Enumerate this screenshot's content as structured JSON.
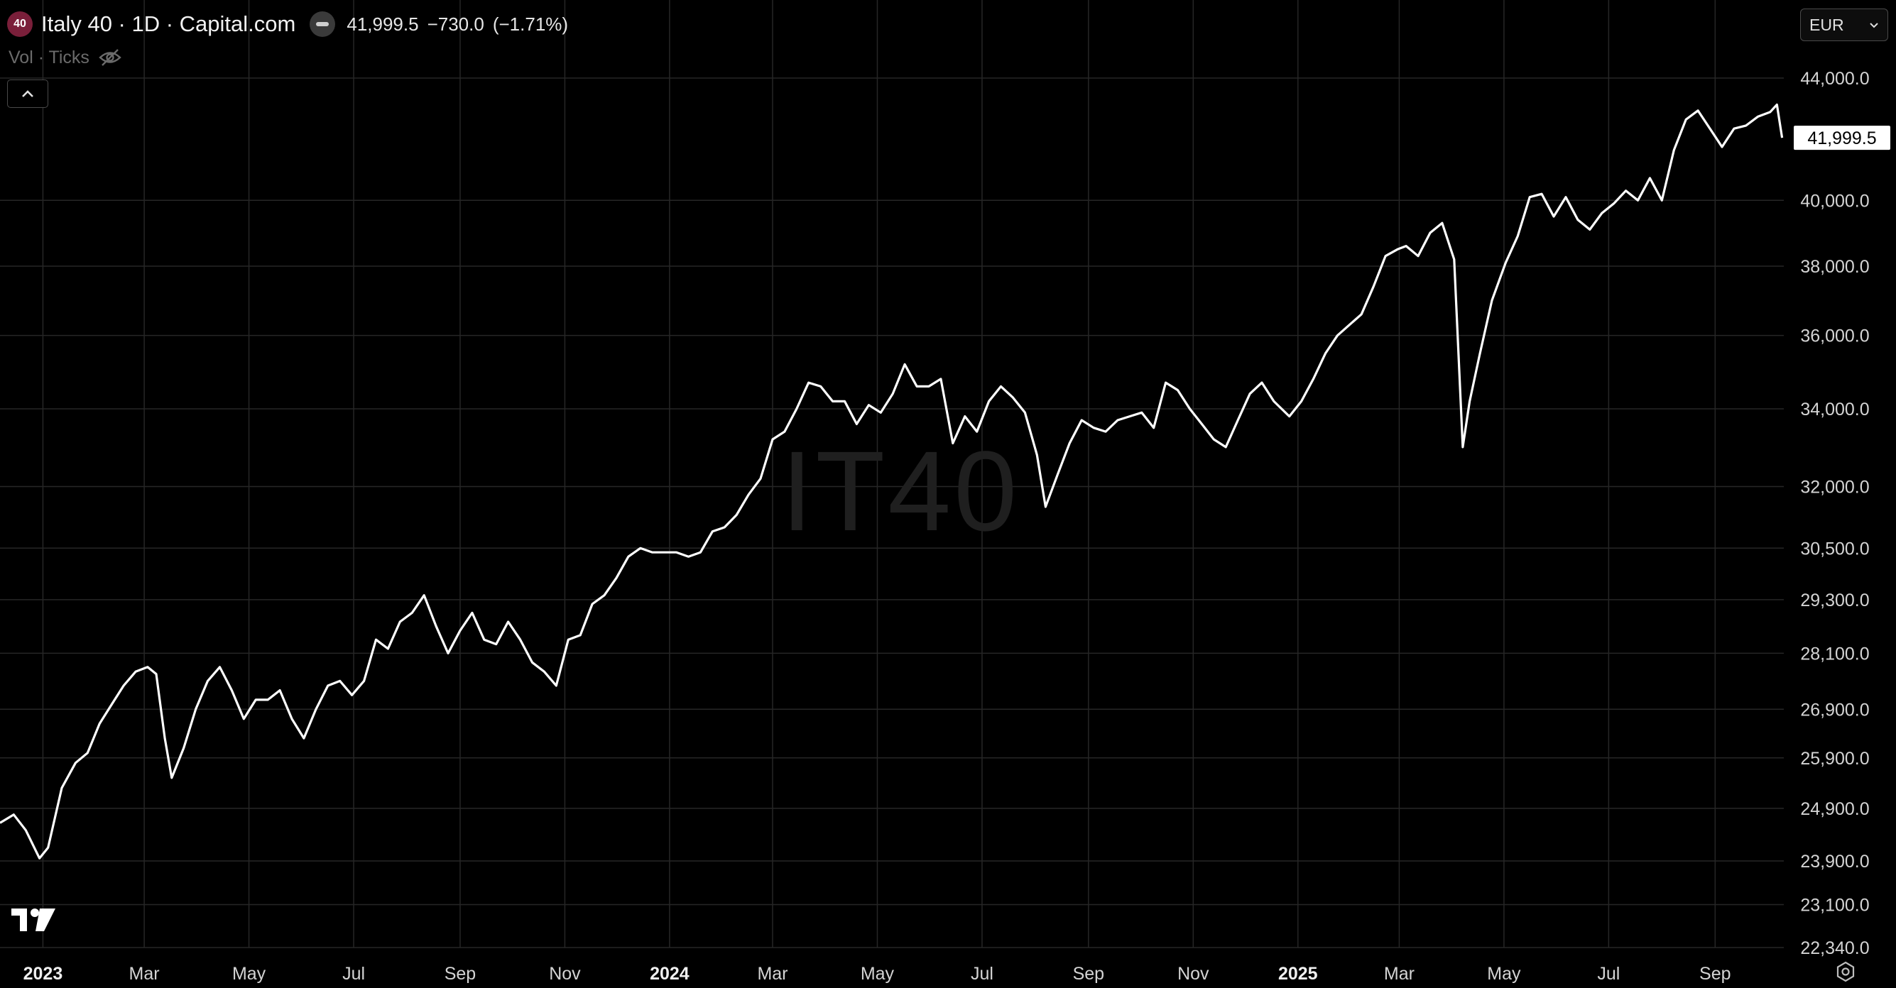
{
  "legend": {
    "badge": "40",
    "title": "Italy 40 · 1D · Capital.com",
    "last": "41,999.5",
    "change": "−730.0",
    "change_pct": "(−1.71%)"
  },
  "indicator": {
    "label": "Vol · Ticks"
  },
  "currency": {
    "value": "EUR"
  },
  "watermark": "IT40",
  "colors": {
    "background": "#000000",
    "line": "#ffffff",
    "grid": "#262626",
    "text": "#d9d9d9"
  },
  "chart_data": {
    "type": "line",
    "title": "Italy 40 · 1D · Capital.com",
    "xlabel": "",
    "ylabel": "",
    "log_scale": true,
    "grid": true,
    "ylim": [
      22340,
      45000
    ],
    "x_range": [
      "2022-12-07",
      "2025-10-11"
    ],
    "x_ticks": [
      {
        "date": "2023-01-01",
        "label": "2023",
        "bold": true
      },
      {
        "date": "2023-03-01",
        "label": "Mar"
      },
      {
        "date": "2023-05-01",
        "label": "May"
      },
      {
        "date": "2023-07-01",
        "label": "Jul"
      },
      {
        "date": "2023-09-01",
        "label": "Sep"
      },
      {
        "date": "2023-11-01",
        "label": "Nov"
      },
      {
        "date": "2024-01-01",
        "label": "2024",
        "bold": true
      },
      {
        "date": "2024-03-01",
        "label": "Mar"
      },
      {
        "date": "2024-05-01",
        "label": "May"
      },
      {
        "date": "2024-07-01",
        "label": "Jul"
      },
      {
        "date": "2024-09-01",
        "label": "Sep"
      },
      {
        "date": "2024-11-01",
        "label": "Nov"
      },
      {
        "date": "2025-01-01",
        "label": "2025",
        "bold": true
      },
      {
        "date": "2025-03-01",
        "label": "Mar"
      },
      {
        "date": "2025-05-01",
        "label": "May"
      },
      {
        "date": "2025-07-01",
        "label": "Jul"
      },
      {
        "date": "2025-09-01",
        "label": "Sep"
      }
    ],
    "y_ticks": [
      {
        "value": 44000,
        "label": "44,000.0"
      },
      {
        "value": 40000,
        "label": "40,000.0"
      },
      {
        "value": 38000,
        "label": "38,000.0"
      },
      {
        "value": 36000,
        "label": "36,000.0"
      },
      {
        "value": 34000,
        "label": "34,000.0"
      },
      {
        "value": 32000,
        "label": "32,000.0"
      },
      {
        "value": 30500,
        "label": "30,500.0"
      },
      {
        "value": 29300,
        "label": "29,300.0"
      },
      {
        "value": 28100,
        "label": "28,100.0"
      },
      {
        "value": 26900,
        "label": "26,900.0"
      },
      {
        "value": 25900,
        "label": "25,900.0"
      },
      {
        "value": 24900,
        "label": "24,900.0"
      },
      {
        "value": 23900,
        "label": "23,900.0"
      },
      {
        "value": 23100,
        "label": "23,100.0"
      },
      {
        "value": 22340,
        "label": "22,340.0"
      }
    ],
    "last_price": {
      "value": 41999.5,
      "label": "41,999.5"
    },
    "series": [
      {
        "points": [
          [
            "2022-12-07",
            24620
          ],
          [
            "2022-12-15",
            24780
          ],
          [
            "2022-12-22",
            24480
          ],
          [
            "2022-12-30",
            23950
          ],
          [
            "2023-01-04",
            24150
          ],
          [
            "2023-01-12",
            25300
          ],
          [
            "2023-01-20",
            25800
          ],
          [
            "2023-01-27",
            26000
          ],
          [
            "2023-02-03",
            26600
          ],
          [
            "2023-02-10",
            27000
          ],
          [
            "2023-02-17",
            27400
          ],
          [
            "2023-02-24",
            27700
          ],
          [
            "2023-03-03",
            27800
          ],
          [
            "2023-03-08",
            27650
          ],
          [
            "2023-03-13",
            26300
          ],
          [
            "2023-03-17",
            25500
          ],
          [
            "2023-03-24",
            26100
          ],
          [
            "2023-03-31",
            26900
          ],
          [
            "2023-04-07",
            27500
          ],
          [
            "2023-04-14",
            27800
          ],
          [
            "2023-04-21",
            27300
          ],
          [
            "2023-04-28",
            26700
          ],
          [
            "2023-05-05",
            27100
          ],
          [
            "2023-05-12",
            27100
          ],
          [
            "2023-05-19",
            27300
          ],
          [
            "2023-05-26",
            26700
          ],
          [
            "2023-06-02",
            26300
          ],
          [
            "2023-06-09",
            26900
          ],
          [
            "2023-06-16",
            27400
          ],
          [
            "2023-06-23",
            27500
          ],
          [
            "2023-06-30",
            27200
          ],
          [
            "2023-07-07",
            27500
          ],
          [
            "2023-07-14",
            28400
          ],
          [
            "2023-07-21",
            28200
          ],
          [
            "2023-07-28",
            28800
          ],
          [
            "2023-08-04",
            29000
          ],
          [
            "2023-08-11",
            29400
          ],
          [
            "2023-08-18",
            28700
          ],
          [
            "2023-08-25",
            28100
          ],
          [
            "2023-09-01",
            28600
          ],
          [
            "2023-09-08",
            29000
          ],
          [
            "2023-09-15",
            28400
          ],
          [
            "2023-09-22",
            28300
          ],
          [
            "2023-09-29",
            28800
          ],
          [
            "2023-10-06",
            28400
          ],
          [
            "2023-10-13",
            27900
          ],
          [
            "2023-10-20",
            27700
          ],
          [
            "2023-10-27",
            27400
          ],
          [
            "2023-11-03",
            28400
          ],
          [
            "2023-11-10",
            28500
          ],
          [
            "2023-11-17",
            29200
          ],
          [
            "2023-11-24",
            29400
          ],
          [
            "2023-12-01",
            29800
          ],
          [
            "2023-12-08",
            30300
          ],
          [
            "2023-12-15",
            30500
          ],
          [
            "2023-12-22",
            30400
          ],
          [
            "2023-12-29",
            30400
          ],
          [
            "2024-01-05",
            30400
          ],
          [
            "2024-01-12",
            30300
          ],
          [
            "2024-01-19",
            30400
          ],
          [
            "2024-01-26",
            30900
          ],
          [
            "2024-02-02",
            31000
          ],
          [
            "2024-02-09",
            31300
          ],
          [
            "2024-02-16",
            31800
          ],
          [
            "2024-02-23",
            32200
          ],
          [
            "2024-03-01",
            33200
          ],
          [
            "2024-03-08",
            33400
          ],
          [
            "2024-03-15",
            34000
          ],
          [
            "2024-03-22",
            34700
          ],
          [
            "2024-03-29",
            34600
          ],
          [
            "2024-04-05",
            34200
          ],
          [
            "2024-04-12",
            34200
          ],
          [
            "2024-04-19",
            33600
          ],
          [
            "2024-04-26",
            34100
          ],
          [
            "2024-05-03",
            33900
          ],
          [
            "2024-05-10",
            34400
          ],
          [
            "2024-05-17",
            35200
          ],
          [
            "2024-05-24",
            34600
          ],
          [
            "2024-05-31",
            34600
          ],
          [
            "2024-06-07",
            34800
          ],
          [
            "2024-06-14",
            33100
          ],
          [
            "2024-06-21",
            33800
          ],
          [
            "2024-06-28",
            33400
          ],
          [
            "2024-07-05",
            34200
          ],
          [
            "2024-07-12",
            34600
          ],
          [
            "2024-07-19",
            34300
          ],
          [
            "2024-07-26",
            33900
          ],
          [
            "2024-08-02",
            32800
          ],
          [
            "2024-08-07",
            31500
          ],
          [
            "2024-08-14",
            32300
          ],
          [
            "2024-08-21",
            33100
          ],
          [
            "2024-08-28",
            33700
          ],
          [
            "2024-09-04",
            33500
          ],
          [
            "2024-09-11",
            33400
          ],
          [
            "2024-09-18",
            33700
          ],
          [
            "2024-09-25",
            33800
          ],
          [
            "2024-10-02",
            33900
          ],
          [
            "2024-10-09",
            33500
          ],
          [
            "2024-10-16",
            34700
          ],
          [
            "2024-10-23",
            34500
          ],
          [
            "2024-10-30",
            34000
          ],
          [
            "2024-11-06",
            33600
          ],
          [
            "2024-11-13",
            33200
          ],
          [
            "2024-11-20",
            33000
          ],
          [
            "2024-11-27",
            33700
          ],
          [
            "2024-12-04",
            34400
          ],
          [
            "2024-12-11",
            34700
          ],
          [
            "2024-12-18",
            34200
          ],
          [
            "2024-12-27",
            33800
          ],
          [
            "2025-01-03",
            34200
          ],
          [
            "2025-01-10",
            34800
          ],
          [
            "2025-01-17",
            35500
          ],
          [
            "2025-01-24",
            36000
          ],
          [
            "2025-01-31",
            36300
          ],
          [
            "2025-02-07",
            36600
          ],
          [
            "2025-02-14",
            37400
          ],
          [
            "2025-02-21",
            38300
          ],
          [
            "2025-02-28",
            38500
          ],
          [
            "2025-03-05",
            38600
          ],
          [
            "2025-03-12",
            38300
          ],
          [
            "2025-03-19",
            39000
          ],
          [
            "2025-03-26",
            39300
          ],
          [
            "2025-04-02",
            38200
          ],
          [
            "2025-04-07",
            33000
          ],
          [
            "2025-04-11",
            34200
          ],
          [
            "2025-04-17",
            35500
          ],
          [
            "2025-04-24",
            37000
          ],
          [
            "2025-05-02",
            38100
          ],
          [
            "2025-05-09",
            38900
          ],
          [
            "2025-05-16",
            40100
          ],
          [
            "2025-05-23",
            40200
          ],
          [
            "2025-05-30",
            39500
          ],
          [
            "2025-06-06",
            40100
          ],
          [
            "2025-06-13",
            39400
          ],
          [
            "2025-06-20",
            39100
          ],
          [
            "2025-06-27",
            39600
          ],
          [
            "2025-07-04",
            39900
          ],
          [
            "2025-07-11",
            40300
          ],
          [
            "2025-07-18",
            40000
          ],
          [
            "2025-07-25",
            40700
          ],
          [
            "2025-08-01",
            40000
          ],
          [
            "2025-08-08",
            41600
          ],
          [
            "2025-08-15",
            42600
          ],
          [
            "2025-08-22",
            42900
          ],
          [
            "2025-08-29",
            42300
          ],
          [
            "2025-09-05",
            41700
          ],
          [
            "2025-09-12",
            42300
          ],
          [
            "2025-09-19",
            42400
          ],
          [
            "2025-09-26",
            42700
          ],
          [
            "2025-10-03",
            42850
          ],
          [
            "2025-10-07",
            43100
          ],
          [
            "2025-10-10",
            41999.5
          ]
        ]
      }
    ]
  }
}
